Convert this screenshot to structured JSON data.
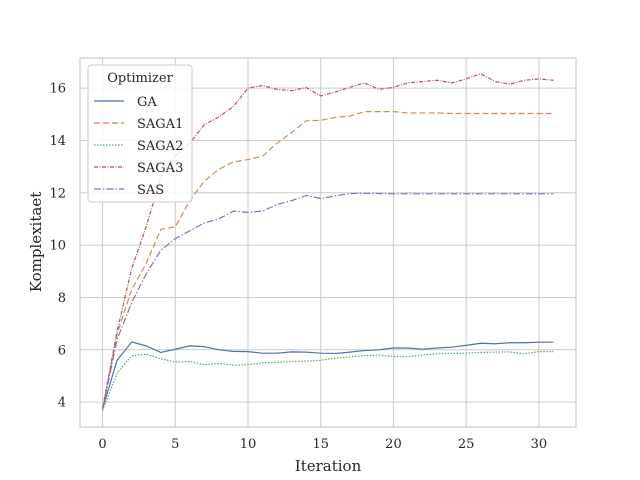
{
  "chart_data": {
    "type": "line",
    "title": "",
    "xlabel": "Iteration",
    "ylabel": "Komplexitaet",
    "xlim": [
      -1.55,
      32.55
    ],
    "ylim": [
      3.05,
      17.15
    ],
    "xticks": [
      0,
      5,
      10,
      15,
      20,
      25,
      30
    ],
    "yticks": [
      4,
      6,
      8,
      10,
      12,
      14,
      16
    ],
    "grid": true,
    "legend": {
      "title": "Optimizer",
      "placement": "top-left"
    },
    "x": [
      0,
      1,
      2,
      3,
      4,
      5,
      6,
      7,
      8,
      9,
      10,
      11,
      12,
      13,
      14,
      15,
      16,
      17,
      18,
      19,
      20,
      21,
      22,
      23,
      24,
      25,
      26,
      27,
      28,
      29,
      30,
      31
    ],
    "series": [
      {
        "name": "GA",
        "color": "#4c72b0",
        "dash": "",
        "values": [
          3.75,
          5.6,
          6.3,
          6.15,
          5.9,
          6.02,
          6.15,
          6.12,
          6.0,
          5.94,
          5.93,
          5.87,
          5.87,
          5.92,
          5.91,
          5.87,
          5.86,
          5.91,
          5.97,
          6.0,
          6.07,
          6.07,
          6.02,
          6.07,
          6.1,
          6.17,
          6.25,
          6.23,
          6.27,
          6.27,
          6.29,
          6.29
        ]
      },
      {
        "name": "SAGA1",
        "color": "#dd8452",
        "dash": "6,3",
        "values": [
          3.72,
          6.6,
          8.3,
          9.3,
          10.6,
          10.7,
          11.7,
          12.45,
          12.9,
          13.18,
          13.27,
          13.4,
          13.9,
          14.3,
          14.75,
          14.77,
          14.88,
          14.93,
          15.1,
          15.1,
          15.1,
          15.05,
          15.05,
          15.05,
          15.03,
          15.03,
          15.03,
          15.03,
          15.03,
          15.03,
          15.03,
          15.03
        ]
      },
      {
        "name": "SAGA2",
        "color": "#55a868",
        "dash": "1.5,1.5",
        "values": [
          3.68,
          5.1,
          5.77,
          5.83,
          5.66,
          5.53,
          5.55,
          5.43,
          5.48,
          5.41,
          5.43,
          5.5,
          5.52,
          5.55,
          5.57,
          5.6,
          5.68,
          5.73,
          5.78,
          5.8,
          5.74,
          5.73,
          5.8,
          5.85,
          5.86,
          5.87,
          5.9,
          5.91,
          5.92,
          5.85,
          5.93,
          5.93
        ]
      },
      {
        "name": "SAGA3",
        "color": "#c44e52",
        "dash": "4,1.5,1,1.5",
        "values": [
          3.75,
          6.7,
          9.1,
          10.7,
          12.6,
          13.4,
          13.9,
          14.6,
          14.9,
          15.3,
          16.0,
          16.1,
          15.95,
          15.9,
          16.02,
          15.7,
          15.85,
          16.03,
          16.2,
          15.95,
          16.03,
          16.2,
          16.25,
          16.3,
          16.2,
          16.35,
          16.55,
          16.25,
          16.15,
          16.3,
          16.35,
          16.3
        ]
      },
      {
        "name": "SAS",
        "color": "#8172b3",
        "dash": "7,2,1.5,2",
        "values": [
          3.73,
          6.4,
          7.8,
          8.9,
          9.8,
          10.25,
          10.55,
          10.85,
          11.0,
          11.3,
          11.25,
          11.3,
          11.55,
          11.7,
          11.9,
          11.78,
          11.88,
          11.97,
          11.98,
          11.97,
          11.96,
          11.96,
          11.96,
          11.96,
          11.96,
          11.96,
          11.96,
          11.96,
          11.96,
          11.96,
          11.96,
          11.96
        ]
      }
    ]
  }
}
